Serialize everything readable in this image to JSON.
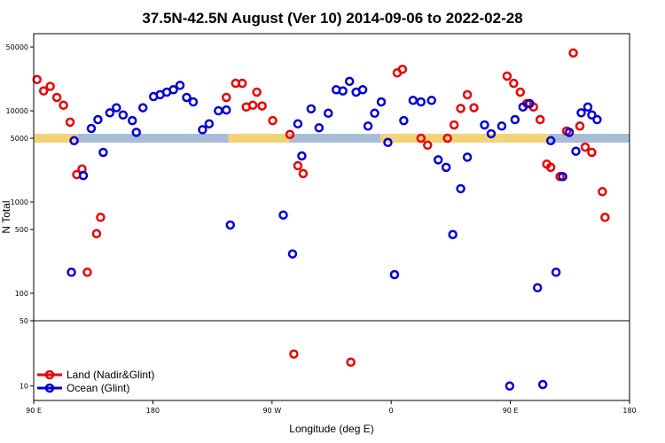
{
  "chart_data": {
    "type": "scatter",
    "title": "37.5N-42.5N August (Ver 10)   2014-09-06 to 2022-02-28",
    "xlabel": "Longitude (deg E)",
    "ylabel": "N Total",
    "x_ticks": [
      {
        "value": 90,
        "label": "90 E"
      },
      {
        "value": 180,
        "label": "180"
      },
      {
        "value": 270,
        "label": "90 W"
      },
      {
        "value": 360,
        "label": "0"
      },
      {
        "value": 450,
        "label": "90 E"
      },
      {
        "value": 540,
        "label": "180"
      }
    ],
    "xlim": [
      90,
      540
    ],
    "y_ticks_upper": [
      {
        "value": 100,
        "label": "100"
      },
      {
        "value": 500,
        "label": "500"
      },
      {
        "value": 1000,
        "label": "1000"
      },
      {
        "value": 5000,
        "label": "5000"
      },
      {
        "value": 10000,
        "label": "10000"
      },
      {
        "value": 50000,
        "label": "50000"
      }
    ],
    "y_ticks_lower": [
      {
        "value": 10,
        "label": "10"
      },
      {
        "value": 50,
        "label": "50"
      }
    ],
    "ylim_upper": [
      50,
      70000
    ],
    "ylim_lower": [
      7,
      50
    ],
    "band_level": 5000,
    "band_segments": [
      {
        "start": 90,
        "end": 123,
        "surface": "land"
      },
      {
        "start": 123,
        "end": 145,
        "surface": "ocean"
      },
      {
        "start": 145,
        "end": 237,
        "surface": "ocean"
      },
      {
        "start": 237,
        "end": 283,
        "surface": "land"
      },
      {
        "start": 283,
        "end": 352,
        "surface": "ocean"
      },
      {
        "start": 352,
        "end": 400,
        "surface": "land"
      },
      {
        "start": 400,
        "end": 443,
        "surface": "land"
      },
      {
        "start": 443,
        "end": 480,
        "surface": "land"
      },
      {
        "start": 480,
        "end": 540,
        "surface": "ocean"
      }
    ],
    "band_colors": {
      "land": "#f2d376",
      "ocean": "#a8bcd8"
    },
    "series": [
      {
        "name": "Land (Nadir&Glint)",
        "color": "#ee0000",
        "x": [
          92.5,
          97.5,
          102.5,
          107.5,
          112.5,
          117.5,
          122.5,
          126.5,
          130.5,
          137.5,
          140.5,
          235.5,
          242.5,
          247.5,
          250.5,
          255.5,
          258.5,
          262.5,
          270.5,
          283.5,
          289.5,
          293.5,
          364.5,
          368.5,
          382.5,
          387.5,
          402.5,
          407.5,
          412.5,
          417.5,
          422.5,
          447.5,
          452.5,
          457.5,
          462.5,
          467.5,
          472.5,
          477.5,
          480.5,
          487.5,
          492.5,
          497.5,
          502.5,
          506.5,
          511.5,
          519.5,
          521.5
        ],
        "y": [
          22000,
          16500,
          18500,
          14000,
          11500,
          7500,
          2000,
          2300,
          170,
          450,
          680,
          14000,
          20000,
          20000,
          11000,
          11500,
          16000,
          11300,
          7800,
          5500,
          2500,
          2050,
          26000,
          28500,
          5000,
          4200,
          5000,
          7000,
          10600,
          15000,
          10800,
          24000,
          20000,
          16000,
          12000,
          11000,
          8000,
          2600,
          2400,
          1900,
          6000,
          43000,
          6800,
          4000,
          3500,
          1300,
          680
        ],
        "lower_x": [
          286.5,
          329.5
        ],
        "lower_y": [
          22,
          18
        ]
      },
      {
        "name": "Ocean (Glint)",
        "color": "#0000dd",
        "x": [
          118.5,
          120.5,
          127.5,
          133.5,
          138.5,
          142.5,
          147.5,
          152.5,
          157.5,
          164.5,
          167.5,
          172.5,
          180.5,
          185.5,
          190.5,
          195.5,
          200.5,
          205.5,
          210.5,
          217.5,
          222.5,
          229.5,
          235.5,
          238.5,
          278.5,
          285.5,
          289.5,
          292.5,
          299.5,
          305.5,
          312.5,
          318.5,
          323.5,
          328.5,
          333.5,
          338.5,
          342.5,
          347.5,
          352.5,
          357.5,
          362.5,
          369.5,
          376.5,
          382.5,
          390.5,
          395.5,
          401.5,
          406.5,
          412.5,
          417.5,
          430.5,
          435.5,
          443.5,
          453.5,
          459.5,
          464.5,
          470.5,
          474.5,
          480.5,
          484.5,
          489.5,
          494.5,
          499.5,
          503.5,
          508.5,
          511.5,
          515.5
        ],
        "y": [
          170,
          4700,
          1950,
          6400,
          8000,
          3500,
          9500,
          10800,
          9000,
          7800,
          5800,
          10800,
          14300,
          15000,
          16000,
          17000,
          19000,
          14000,
          12500,
          6200,
          7200,
          10000,
          10200,
          560,
          720,
          270,
          7200,
          3200,
          10500,
          6500,
          9400,
          17000,
          16500,
          21000,
          16000,
          17000,
          6800,
          9400,
          12500,
          4500,
          160,
          7800,
          13000,
          12500,
          13000,
          2900,
          2400,
          440,
          1400,
          3100,
          7000,
          5600,
          6800,
          8000,
          11000,
          12000,
          115,
          10,
          4700,
          170,
          1900,
          5800,
          3600,
          9500,
          11000,
          9000,
          8000
        ],
        "lower_x": [
          449.5
        ],
        "lower_y": [
          10
        ]
      }
    ],
    "legend": [
      {
        "label": "Land (Nadir&Glint)",
        "color": "#ee0000"
      },
      {
        "label": "Ocean (Glint)",
        "color": "#0000dd"
      }
    ],
    "legend_position": "bottom-left"
  }
}
